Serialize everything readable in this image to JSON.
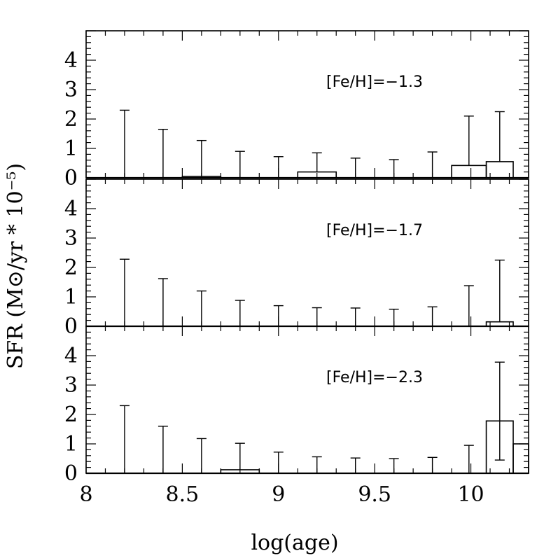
{
  "chart_data": {
    "type": "bar",
    "xlabel": "log(age)",
    "ylabel": "SFR (M⊙/yr * 10⁻⁵)",
    "xlim": [
      8.0,
      10.3
    ],
    "ylim": [
      0,
      5
    ],
    "x_ticks": [
      "8",
      "8.5",
      "9",
      "9.5",
      "10"
    ],
    "y_ticks": [
      "0",
      "1",
      "2",
      "3",
      "4"
    ],
    "panels": [
      {
        "label": "[Fe/H]=−1.3",
        "bins": [
          {
            "x0": 8.1,
            "x1": 8.3,
            "value": 0.0,
            "err_top": 2.3
          },
          {
            "x0": 8.3,
            "x1": 8.5,
            "value": 0.0,
            "err_top": 1.65
          },
          {
            "x0": 8.5,
            "x1": 8.7,
            "value": 0.05,
            "err_top": 1.27
          },
          {
            "x0": 8.7,
            "x1": 8.9,
            "value": 0.0,
            "err_top": 0.9
          },
          {
            "x0": 8.9,
            "x1": 9.1,
            "value": 0.0,
            "err_top": 0.72
          },
          {
            "x0": 9.1,
            "x1": 9.3,
            "value": 0.2,
            "err_top": 0.85
          },
          {
            "x0": 9.3,
            "x1": 9.5,
            "value": 0.0,
            "err_top": 0.67
          },
          {
            "x0": 9.5,
            "x1": 9.7,
            "value": 0.0,
            "err_top": 0.62
          },
          {
            "x0": 9.7,
            "x1": 9.9,
            "value": 0.0,
            "err_top": 0.88
          },
          {
            "x0": 9.9,
            "x1": 10.08,
            "value": 0.42,
            "err_top": 2.1
          },
          {
            "x0": 10.08,
            "x1": 10.22,
            "value": 0.55,
            "err_top": 2.25
          }
        ]
      },
      {
        "label": "[Fe/H]=−1.7",
        "bins": [
          {
            "x0": 8.1,
            "x1": 8.3,
            "value": 0.0,
            "err_top": 2.28
          },
          {
            "x0": 8.3,
            "x1": 8.5,
            "value": 0.0,
            "err_top": 1.62
          },
          {
            "x0": 8.5,
            "x1": 8.7,
            "value": 0.0,
            "err_top": 1.2
          },
          {
            "x0": 8.7,
            "x1": 8.9,
            "value": 0.0,
            "err_top": 0.88
          },
          {
            "x0": 8.9,
            "x1": 9.1,
            "value": 0.0,
            "err_top": 0.7
          },
          {
            "x0": 9.1,
            "x1": 9.3,
            "value": 0.0,
            "err_top": 0.63
          },
          {
            "x0": 9.3,
            "x1": 9.5,
            "value": 0.0,
            "err_top": 0.62
          },
          {
            "x0": 9.5,
            "x1": 9.7,
            "value": 0.0,
            "err_top": 0.58
          },
          {
            "x0": 9.7,
            "x1": 9.9,
            "value": 0.0,
            "err_top": 0.66
          },
          {
            "x0": 9.9,
            "x1": 10.08,
            "value": 0.0,
            "err_top": 1.38
          },
          {
            "x0": 10.08,
            "x1": 10.22,
            "value": 0.15,
            "err_top": 2.25
          }
        ]
      },
      {
        "label": "[Fe/H]=−2.3",
        "bins": [
          {
            "x0": 8.1,
            "x1": 8.3,
            "value": 0.0,
            "err_top": 2.3
          },
          {
            "x0": 8.3,
            "x1": 8.5,
            "value": 0.0,
            "err_top": 1.6
          },
          {
            "x0": 8.5,
            "x1": 8.7,
            "value": 0.0,
            "err_top": 1.18
          },
          {
            "x0": 8.7,
            "x1": 8.9,
            "value": 0.12,
            "err_top": 1.02
          },
          {
            "x0": 8.9,
            "x1": 9.1,
            "value": 0.0,
            "err_top": 0.72
          },
          {
            "x0": 9.1,
            "x1": 9.3,
            "value": 0.0,
            "err_top": 0.56
          },
          {
            "x0": 9.3,
            "x1": 9.5,
            "value": 0.0,
            "err_top": 0.52
          },
          {
            "x0": 9.5,
            "x1": 9.7,
            "value": 0.0,
            "err_top": 0.5
          },
          {
            "x0": 9.7,
            "x1": 9.9,
            "value": 0.0,
            "err_top": 0.54
          },
          {
            "x0": 9.9,
            "x1": 10.08,
            "value": 0.0,
            "err_top": 0.95
          },
          {
            "x0": 10.08,
            "x1": 10.22,
            "value": 1.78,
            "err_top": 3.78,
            "err_bottom": 0.45
          },
          {
            "x0": 10.22,
            "x1": 10.3,
            "value": 1.0,
            "err_top": 1.0
          }
        ]
      }
    ]
  }
}
